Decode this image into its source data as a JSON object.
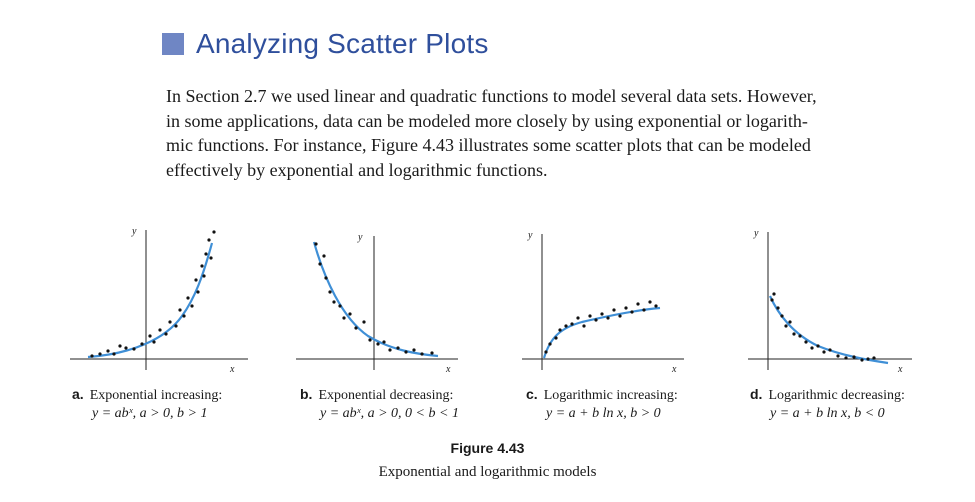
{
  "heading": {
    "title": "Analyzing Scatter Plots"
  },
  "paragraph": [
    "In Section 2.7 we used linear and quadratic functions to model several data sets. However,",
    "in some applications, data can be modeled more closely by using exponential or logarith-",
    "mic functions. For instance, Figure 4.43 illustrates some scatter plots that can be modeled",
    "effectively by exponential and logarithmic functions."
  ],
  "panels": [
    {
      "letter": "a.",
      "name": "Exponential increasing:",
      "formula": "y = abˣ, a > 0, b > 1",
      "x_label": "x",
      "y_label": "y"
    },
    {
      "letter": "b.",
      "name": "Exponential decreasing:",
      "formula": "y = abˣ, a > 0, 0 < b < 1",
      "x_label": "x",
      "y_label": "y"
    },
    {
      "letter": "c.",
      "name": "Logarithmic increasing:",
      "formula": "y = a + b ln x, b > 0",
      "x_label": "x",
      "y_label": "y"
    },
    {
      "letter": "d.",
      "name": "Logarithmic decreasing:",
      "formula": "y = a + b ln x, b < 0",
      "x_label": "x",
      "y_label": "y"
    }
  ],
  "figure": {
    "number": "Figure 4.43",
    "caption": "Exponential and logarithmic models"
  },
  "colors": {
    "heading": "#2f4f9c",
    "square": "#6f86c4",
    "curve": "#3f8fd6"
  }
}
